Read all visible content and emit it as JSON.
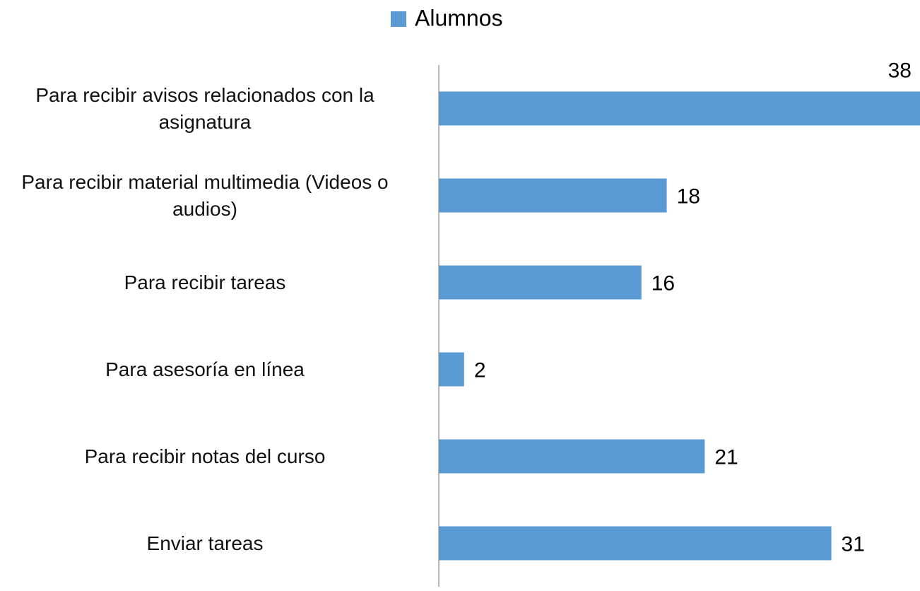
{
  "chart_data": {
    "type": "bar",
    "orientation": "horizontal",
    "categories": [
      "Para recibir avisos relacionados con la asignatura",
      "Para recibir material multimedia (Videos o audios)",
      "Para recibir tareas",
      "Para asesoría en línea",
      "Para recibir notas del curso",
      "Enviar tareas"
    ],
    "series": [
      {
        "name": "Alumnos",
        "color": "#5b9bd5",
        "values": [
          38,
          18,
          16,
          2,
          21,
          31
        ]
      }
    ],
    "xlim": [
      0,
      38
    ],
    "legend": "top"
  }
}
